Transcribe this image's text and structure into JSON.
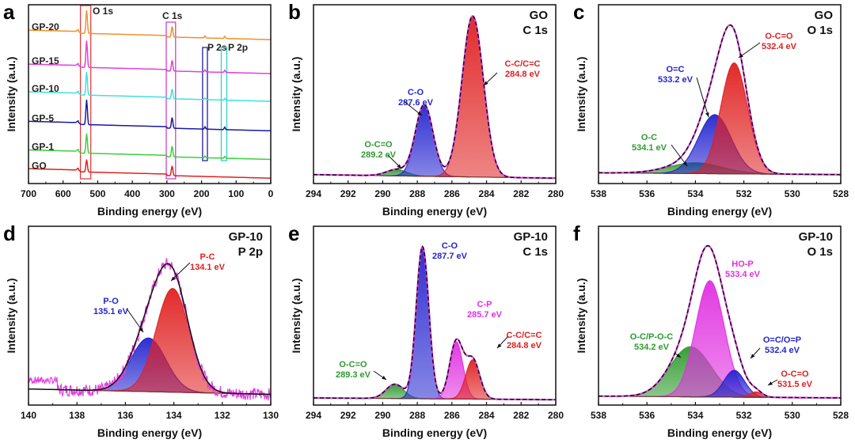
{
  "chart_data": [
    {
      "panel": "a",
      "type": "line",
      "xlabel": "Binding energy (eV)",
      "ylabel": "Intensity (a.u.)",
      "xlim": [
        700,
        0
      ],
      "xticks": [
        700,
        600,
        500,
        400,
        300,
        200,
        100,
        0
      ],
      "x_reversed": true,
      "region_labels": [
        {
          "text": "O 1s",
          "range": [
            550,
            520
          ],
          "color": "#e04040"
        },
        {
          "text": "C 1s",
          "range": [
            302,
            275
          ],
          "color": "#d040d0"
        },
        {
          "text": "P 2s",
          "range": [
            197,
            183
          ],
          "color": "#2020a0"
        },
        {
          "text": "P 2p",
          "range": [
            143,
            127
          ],
          "color": "#30d0d0"
        }
      ],
      "series": [
        {
          "name": "GP-20",
          "color": "#f0922a",
          "offset": 0.84,
          "o1s": 0.13,
          "c1s": 0.06,
          "p": 0.012
        },
        {
          "name": "GP-15",
          "color": "#e040e0",
          "offset": 0.65,
          "o1s": 0.15,
          "c1s": 0.06,
          "p": 0.012
        },
        {
          "name": "GP-10",
          "color": "#40e0e0",
          "offset": 0.495,
          "o1s": 0.13,
          "c1s": 0.055,
          "p": 0.01
        },
        {
          "name": "GP-5",
          "color": "#1a1aa0",
          "offset": 0.33,
          "o1s": 0.14,
          "c1s": 0.06,
          "p": 0.014
        },
        {
          "name": "GP-1",
          "color": "#3ecf3e",
          "offset": 0.17,
          "o1s": 0.11,
          "c1s": 0.06,
          "p": 0.01
        },
        {
          "name": "GO",
          "color": "#e02020",
          "offset": 0.065,
          "o1s": 0.07,
          "c1s": 0.055,
          "p": 0
        }
      ]
    },
    {
      "panel": "b",
      "type": "area",
      "title": [
        "GO",
        "C 1s"
      ],
      "xlabel": "Binding energy (eV)",
      "ylabel": "Intensity (a.u.)",
      "xlim": [
        294,
        280
      ],
      "xticks": [
        294,
        292,
        290,
        288,
        286,
        284,
        282,
        280
      ],
      "baseline": [
        0.05,
        0.03
      ],
      "peaks": [
        {
          "name": "O-C=O",
          "energy": "289.2 eV",
          "center": 289.2,
          "height": 0.035,
          "fwhm": 1.4,
          "color": "#2e9a2e"
        },
        {
          "name": "C-O",
          "energy": "287.6 eV",
          "center": 287.6,
          "height": 0.4,
          "fwhm": 1.2,
          "color": "#2424d0"
        },
        {
          "name": "C-C/C=C",
          "energy": "284.8 eV",
          "center": 284.8,
          "height": 0.9,
          "fwhm": 1.45,
          "color": "#e02020"
        }
      ]
    },
    {
      "panel": "c",
      "type": "area",
      "title": [
        "GO",
        "O 1s"
      ],
      "xlabel": "Binding energy (eV)",
      "ylabel": "Intensity (a.u.)",
      "xlim": [
        538,
        528
      ],
      "xticks": [
        538,
        536,
        534,
        532,
        530,
        528
      ],
      "baseline": [
        0.06,
        0.05
      ],
      "peaks": [
        {
          "name": "O-C",
          "energy": "534.1 eV",
          "center": 534.0,
          "height": 0.06,
          "fwhm": 2.6,
          "color": "#2e9a2e"
        },
        {
          "name": "O=C",
          "energy": "533.2 eV",
          "center": 533.2,
          "height": 0.33,
          "fwhm": 1.6,
          "color": "#2424d0"
        },
        {
          "name": "O-C=O",
          "energy": "532.4 eV",
          "center": 532.4,
          "height": 0.62,
          "fwhm": 1.3,
          "color": "#e02020"
        }
      ]
    },
    {
      "panel": "d",
      "type": "area",
      "title": [
        "GP-10",
        "P 2p"
      ],
      "xlabel": "Binding energy (eV)",
      "ylabel": "Intensity (a.u.)",
      "xlim": [
        140,
        130
      ],
      "xticks": [
        140,
        138,
        136,
        134,
        132,
        130
      ],
      "baseline": [
        0.09,
        0.06
      ],
      "noisy": true,
      "peaks": [
        {
          "name": "P-O",
          "energy": "135.1 eV",
          "center": 135.05,
          "height": 0.3,
          "fwhm": 1.7,
          "color": "#2424d0"
        },
        {
          "name": "P-C",
          "energy": "134.1 eV",
          "center": 134.05,
          "height": 0.58,
          "fwhm": 1.6,
          "color": "#e02020"
        }
      ]
    },
    {
      "panel": "e",
      "type": "area",
      "title": [
        "GP-10",
        "C 1s"
      ],
      "xlabel": "Binding energy (eV)",
      "ylabel": "Intensity (a.u.)",
      "xlim": [
        294,
        280
      ],
      "xticks": [
        294,
        292,
        290,
        288,
        286,
        284,
        282,
        280
      ],
      "baseline": [
        0.04,
        0.03
      ],
      "peaks": [
        {
          "name": "O-C=O",
          "energy": "289.3 eV",
          "center": 289.3,
          "height": 0.08,
          "fwhm": 1.2,
          "color": "#2e9a2e"
        },
        {
          "name": "C-O",
          "energy": "287.7 eV",
          "center": 287.7,
          "height": 0.85,
          "fwhm": 0.85,
          "color": "#2424d0"
        },
        {
          "name": "C-P",
          "energy": "285.7 eV",
          "center": 285.75,
          "height": 0.32,
          "fwhm": 0.9,
          "color": "#e030e0"
        },
        {
          "name": "C-C/C=C",
          "energy": "284.8 eV",
          "center": 284.8,
          "height": 0.22,
          "fwhm": 0.95,
          "color": "#e02020"
        }
      ]
    },
    {
      "panel": "f",
      "type": "area",
      "title": [
        "GP-10",
        "O 1s"
      ],
      "xlabel": "Binding energy (eV)",
      "ylabel": "Intensity (a.u.)",
      "xlim": [
        538,
        528
      ],
      "xticks": [
        538,
        536,
        534,
        532,
        530,
        528
      ],
      "baseline": [
        0.05,
        0.04
      ],
      "peaks": [
        {
          "name": "O-C/P-O-C",
          "energy": "534.2 eV",
          "center": 534.2,
          "height": 0.28,
          "fwhm": 2.0,
          "color": "#2e9a2e"
        },
        {
          "name": "HO-P",
          "energy": "533.4 eV",
          "center": 533.4,
          "height": 0.65,
          "fwhm": 1.4,
          "color": "#e030e0"
        },
        {
          "name": "O=C/O=P",
          "energy": "532.4 eV",
          "center": 532.4,
          "height": 0.15,
          "fwhm": 1.0,
          "color": "#2424d0"
        },
        {
          "name": "O-C=O",
          "energy": "531.5 eV",
          "center": 531.5,
          "height": 0.03,
          "fwhm": 0.6,
          "color": "#e02020"
        }
      ]
    }
  ]
}
